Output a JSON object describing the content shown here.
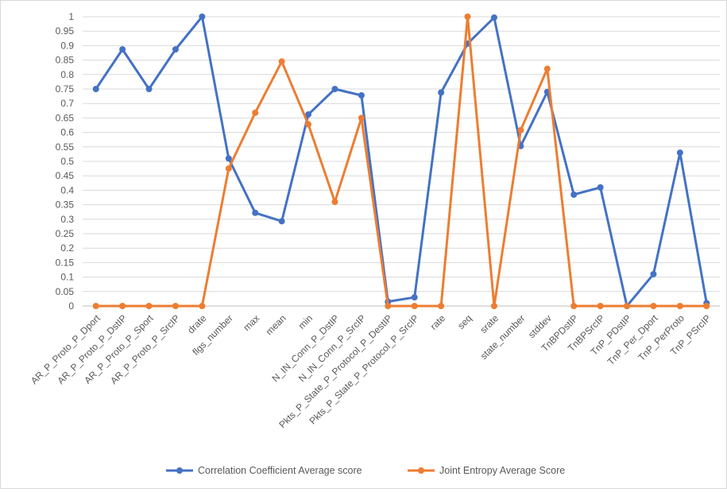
{
  "chart_data": {
    "type": "line",
    "categories": [
      "AR_P_Proto_P_Dport",
      "AR_P_Proto_P_DstIP",
      "AR_P_Proto_P_Sport",
      "AR_P_Proto_P_SrcIP",
      "drate",
      "flgs_number",
      "max",
      "mean",
      "min",
      "N_IN_Conn_P_DstIP",
      "N_IN_Conn_P_SrcIP",
      "Pkts_P_State_P_Protocol_P_DestIP",
      "Pkts_P_State_P_Protocol_P_SrcIP",
      "rate",
      "seq",
      "srate",
      "state_number",
      "stddev",
      "TnBPDstIP",
      "TnBPSrcIP",
      "TnP_PDstIP",
      "TnP_Per_Dport",
      "TnP_PerProto",
      "TnP_PSrcIP"
    ],
    "series": [
      {
        "name": "Correlation Coefficient Average score",
        "color": "#4472c4",
        "values": [
          0.75,
          0.887,
          0.75,
          0.887,
          1.0,
          0.51,
          0.322,
          0.293,
          0.662,
          0.75,
          0.728,
          0.015,
          0.03,
          0.738,
          0.907,
          0.997,
          0.553,
          0.74,
          0.385,
          0.41,
          0.0,
          0.11,
          0.53,
          0.01
        ]
      },
      {
        "name": "Joint Entropy Average Score",
        "color": "#ed7d31",
        "values": [
          0,
          0,
          0,
          0,
          0,
          0.475,
          0.668,
          0.845,
          0.628,
          0.36,
          0.65,
          0,
          0,
          0,
          1.0,
          0,
          0.608,
          0.82,
          0,
          0,
          0,
          0,
          0,
          0
        ]
      }
    ],
    "ylim": [
      0,
      1
    ],
    "yticks": [
      "0",
      "0.05",
      "0.1",
      "0.15",
      "0.2",
      "0.25",
      "0.3",
      "0.35",
      "0.4",
      "0.45",
      "0.5",
      "0.55",
      "0.6",
      "0.65",
      "0.7",
      "0.75",
      "0.8",
      "0.85",
      "0.9",
      "0.95",
      "1"
    ],
    "grid": true,
    "legend_position": "bottom",
    "title": "",
    "xlabel": "",
    "ylabel": ""
  }
}
